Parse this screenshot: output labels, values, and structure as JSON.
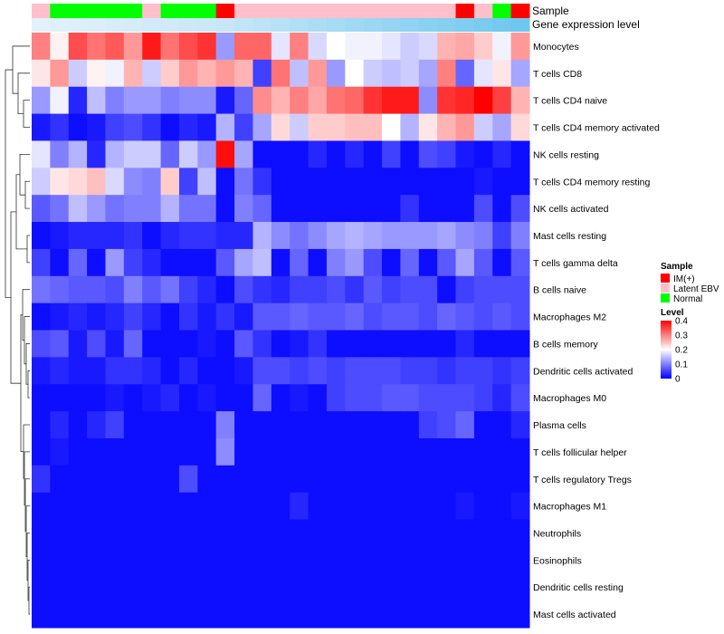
{
  "chart_data": {
    "type": "heatmap",
    "title": "",
    "annotation_labels": [
      "Sample",
      "Gene expression level"
    ],
    "rows": [
      "Monocytes",
      "T cells CD8",
      "T cells CD4 naive",
      "T cells CD4 memory activated",
      "NK cells resting",
      "T cells CD4 memory resting",
      "NK cells activated",
      "Mast cells resting",
      "T cells gamma delta",
      "B cells naive",
      "Macrophages M2",
      "B cells memory",
      "Dendritic cells activated",
      "Macrophages M0",
      "Plasma cells",
      "T cells follicular helper",
      "T cells regulatory  Tregs",
      "Macrophages M1",
      "Neutrophils",
      "Eosinophils",
      "Dendritic cells resting",
      "Mast cells activated"
    ],
    "samples": [
      "Latent EBV",
      "Normal",
      "Normal",
      "Normal",
      "Normal",
      "Normal",
      "Latent EBV",
      "Normal",
      "Normal",
      "Normal",
      "IM(+)",
      "Latent EBV",
      "Latent EBV",
      "Latent EBV",
      "Latent EBV",
      "Latent EBV",
      "Latent EBV",
      "Latent EBV",
      "Latent EBV",
      "Latent EBV",
      "Latent EBV",
      "Latent EBV",
      "Latent EBV",
      "IM(+)",
      "Latent EBV",
      "Normal",
      "IM(+)"
    ],
    "expression_level": [
      0.02,
      0.04,
      0.06,
      0.08,
      0.1,
      0.12,
      0.14,
      0.16,
      0.18,
      0.2,
      0.22,
      0.26,
      0.3,
      0.34,
      0.38,
      0.42,
      0.46,
      0.5,
      0.54,
      0.58,
      0.62,
      0.66,
      0.7,
      0.74,
      0.78,
      0.82,
      0.86
    ],
    "values": [
      [
        0.3,
        0.21,
        0.34,
        0.31,
        0.33,
        0.28,
        0.38,
        0.31,
        0.34,
        0.36,
        0.12,
        0.32,
        0.32,
        0.18,
        0.3,
        0.17,
        0.2,
        0.19,
        0.19,
        0.18,
        0.16,
        0.17,
        0.26,
        0.27,
        0.24,
        0.19,
        0.28
      ],
      [
        0.22,
        0.28,
        0.16,
        0.21,
        0.19,
        0.26,
        0.16,
        0.24,
        0.28,
        0.26,
        0.28,
        0.26,
        0.05,
        0.31,
        0.15,
        0.28,
        0.12,
        0.2,
        0.16,
        0.15,
        0.16,
        0.13,
        0.3,
        0.08,
        0.18,
        0.22,
        0.13
      ],
      [
        0.12,
        0.19,
        0.03,
        0.15,
        0.1,
        0.12,
        0.12,
        0.1,
        0.11,
        0.11,
        0.02,
        0.08,
        0.29,
        0.26,
        0.3,
        0.27,
        0.31,
        0.32,
        0.36,
        0.38,
        0.38,
        0.11,
        0.36,
        0.37,
        0.4,
        0.35,
        0.26
      ],
      [
        0.02,
        0.04,
        0.01,
        0.02,
        0.05,
        0.06,
        0.04,
        0.01,
        0.03,
        0.02,
        0.14,
        0.05,
        0.13,
        0.23,
        0.16,
        0.24,
        0.24,
        0.25,
        0.25,
        0.2,
        0.14,
        0.22,
        0.26,
        0.28,
        0.16,
        0.13,
        0.23
      ],
      [
        0.18,
        0.1,
        0.14,
        0.03,
        0.14,
        0.16,
        0.16,
        0.08,
        0.16,
        0.12,
        0.39,
        0.13,
        0.01,
        0.01,
        0.01,
        0.03,
        0.01,
        0.03,
        0.01,
        0.05,
        0.01,
        0.06,
        0.05,
        0.02,
        0.01,
        0.03,
        0.01
      ],
      [
        0.16,
        0.22,
        0.23,
        0.25,
        0.17,
        0.11,
        0.1,
        0.24,
        0.05,
        0.15,
        0.01,
        0.09,
        0.04,
        0.01,
        0.01,
        0.01,
        0.01,
        0.01,
        0.01,
        0.01,
        0.01,
        0.01,
        0.01,
        0.01,
        0.02,
        0.01,
        0.01
      ],
      [
        0.07,
        0.09,
        0.15,
        0.12,
        0.09,
        0.1,
        0.1,
        0.14,
        0.09,
        0.09,
        0.01,
        0.1,
        0.08,
        0.01,
        0.01,
        0.01,
        0.01,
        0.01,
        0.01,
        0.01,
        0.04,
        0.01,
        0.01,
        0.01,
        0.06,
        0.01,
        0.06
      ],
      [
        0.01,
        0.02,
        0.03,
        0.03,
        0.03,
        0.04,
        0.01,
        0.03,
        0.04,
        0.04,
        0.03,
        0.03,
        0.14,
        0.11,
        0.09,
        0.11,
        0.13,
        0.14,
        0.13,
        0.12,
        0.12,
        0.12,
        0.13,
        0.11,
        0.1,
        0.05,
        0.1
      ],
      [
        0.05,
        0.01,
        0.08,
        0.01,
        0.12,
        0.05,
        0.03,
        0.01,
        0.01,
        0.01,
        0.07,
        0.13,
        0.15,
        0.01,
        0.08,
        0.01,
        0.1,
        0.12,
        0.06,
        0.01,
        0.08,
        0.01,
        0.07,
        0.13,
        0.07,
        0.01,
        0.07
      ],
      [
        0.09,
        0.08,
        0.07,
        0.07,
        0.06,
        0.1,
        0.07,
        0.09,
        0.05,
        0.03,
        0.01,
        0.06,
        0.04,
        0.03,
        0.05,
        0.05,
        0.06,
        0.04,
        0.07,
        0.05,
        0.06,
        0.06,
        0.01,
        0.05,
        0.06,
        0.06,
        0.06
      ],
      [
        0.01,
        0.02,
        0.03,
        0.02,
        0.03,
        0.05,
        0.03,
        0.01,
        0.04,
        0.02,
        0.04,
        0.02,
        0.07,
        0.07,
        0.08,
        0.07,
        0.07,
        0.08,
        0.06,
        0.07,
        0.07,
        0.06,
        0.08,
        0.07,
        0.06,
        0.07,
        0.06
      ],
      [
        0.06,
        0.07,
        0.02,
        0.06,
        0.02,
        0.08,
        0.01,
        0.01,
        0.01,
        0.02,
        0.01,
        0.07,
        0.04,
        0.01,
        0.02,
        0.04,
        0.01,
        0.01,
        0.01,
        0.01,
        0.01,
        0.01,
        0.01,
        0.03,
        0.01,
        0.01,
        0.01
      ],
      [
        0.02,
        0.03,
        0.02,
        0.02,
        0.04,
        0.04,
        0.03,
        0.01,
        0.03,
        0.01,
        0.01,
        0.02,
        0.06,
        0.06,
        0.05,
        0.06,
        0.05,
        0.06,
        0.06,
        0.06,
        0.05,
        0.05,
        0.04,
        0.05,
        0.05,
        0.04,
        0.05
      ],
      [
        0.01,
        0.01,
        0.01,
        0.01,
        0.02,
        0.01,
        0.02,
        0.03,
        0.01,
        0.02,
        0.01,
        0.01,
        0.08,
        0.01,
        0.02,
        0.01,
        0.05,
        0.06,
        0.06,
        0.07,
        0.07,
        0.06,
        0.06,
        0.06,
        0.05,
        0.03,
        0.06
      ],
      [
        0.01,
        0.03,
        0.01,
        0.03,
        0.05,
        0.01,
        0.01,
        0.01,
        0.01,
        0.01,
        0.1,
        0.01,
        0.01,
        0.01,
        0.01,
        0.01,
        0.01,
        0.01,
        0.01,
        0.01,
        0.01,
        0.05,
        0.06,
        0.08,
        0.01,
        0.01,
        0.03
      ],
      [
        0.01,
        0.02,
        0.01,
        0.01,
        0.01,
        0.01,
        0.01,
        0.01,
        0.01,
        0.01,
        0.11,
        0.01,
        0.01,
        0.01,
        0.01,
        0.01,
        0.01,
        0.01,
        0.01,
        0.01,
        0.01,
        0.01,
        0.01,
        0.01,
        0.01,
        0.01,
        0.01
      ],
      [
        0.04,
        0.01,
        0.01,
        0.01,
        0.01,
        0.01,
        0.01,
        0.01,
        0.06,
        0.01,
        0.01,
        0.01,
        0.01,
        0.01,
        0.01,
        0.01,
        0.01,
        0.01,
        0.01,
        0.01,
        0.01,
        0.01,
        0.01,
        0.01,
        0.01,
        0.01,
        0.01
      ],
      [
        0.01,
        0.01,
        0.01,
        0.01,
        0.01,
        0.01,
        0.01,
        0.01,
        0.01,
        0.01,
        0.01,
        0.01,
        0.01,
        0.01,
        0.03,
        0.01,
        0.01,
        0.01,
        0.01,
        0.01,
        0.01,
        0.01,
        0.01,
        0.02,
        0.01,
        0.01,
        0.02
      ],
      [
        0.01,
        0.01,
        0.01,
        0.01,
        0.01,
        0.01,
        0.01,
        0.01,
        0.01,
        0.01,
        0.01,
        0.01,
        0.01,
        0.01,
        0.01,
        0.01,
        0.01,
        0.01,
        0.01,
        0.01,
        0.01,
        0.01,
        0.01,
        0.01,
        0.01,
        0.01,
        0.01
      ],
      [
        0.01,
        0.01,
        0.01,
        0.01,
        0.01,
        0.01,
        0.01,
        0.01,
        0.01,
        0.01,
        0.01,
        0.01,
        0.01,
        0.01,
        0.01,
        0.01,
        0.01,
        0.01,
        0.01,
        0.01,
        0.01,
        0.01,
        0.01,
        0.01,
        0.01,
        0.01,
        0.01
      ],
      [
        0.01,
        0.01,
        0.01,
        0.01,
        0.01,
        0.01,
        0.01,
        0.01,
        0.01,
        0.01,
        0.01,
        0.01,
        0.01,
        0.01,
        0.01,
        0.01,
        0.01,
        0.01,
        0.01,
        0.01,
        0.01,
        0.01,
        0.01,
        0.01,
        0.01,
        0.01,
        0.01
      ],
      [
        0.01,
        0.01,
        0.01,
        0.01,
        0.01,
        0.01,
        0.01,
        0.01,
        0.01,
        0.01,
        0.01,
        0.01,
        0.01,
        0.01,
        0.01,
        0.01,
        0.01,
        0.01,
        0.01,
        0.01,
        0.01,
        0.01,
        0.01,
        0.01,
        0.01,
        0.01,
        0.01
      ]
    ],
    "color_scale": {
      "min": 0.0,
      "mid": 0.2,
      "max": 0.4,
      "low": "#0000ff",
      "middle": "#ffffff",
      "high": "#ff0000"
    },
    "legend": {
      "sample_title": "Sample",
      "sample_entries": [
        {
          "label": "IM(+)",
          "color": "#ff0000"
        },
        {
          "label": "Latent EBV",
          "color": "#ffc0cb"
        },
        {
          "label": "Normal",
          "color": "#00ff00"
        }
      ],
      "level_title": "Level",
      "level_ticks": [
        "0.4",
        "0.3",
        "0.2",
        "0.1",
        "0"
      ],
      "level_tick_values": [
        0.4,
        0.3,
        0.2,
        0.1,
        0.0
      ],
      "placement": "right"
    },
    "expression_colors": {
      "low": "#e6f2fb",
      "high": "#5bc0ec"
    }
  }
}
